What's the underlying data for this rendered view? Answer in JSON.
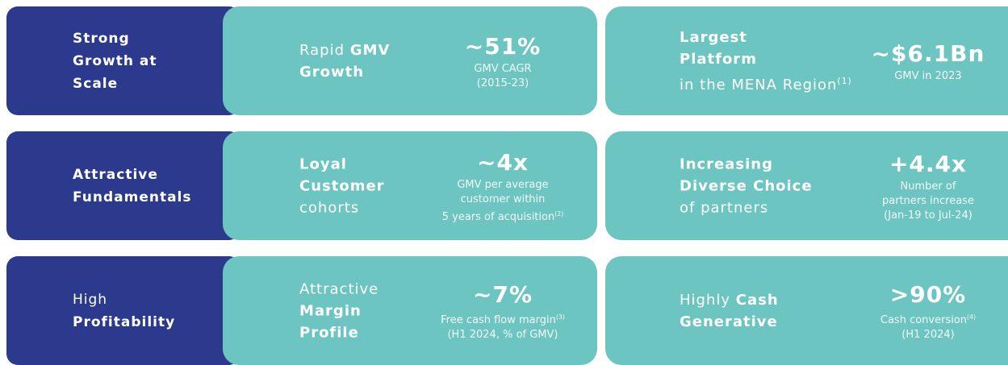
{
  "rows": [
    {
      "label": [
        [
          {
            "text": "Strong",
            "style": "bold"
          }
        ],
        [
          {
            "text": "Growth at",
            "style": "bold"
          }
        ],
        [
          {
            "text": "Scale",
            "style": "bold"
          }
        ]
      ],
      "cards": [
        {
          "label": [
            [
              {
                "text": "Rapid ",
                "style": "normal"
              },
              {
                "text": "GMV",
                "style": "bold"
              }
            ],
            [
              {
                "text": "Growth",
                "style": "bold"
              }
            ]
          ],
          "stat": "~51%",
          "desc": [
            [
              {
                "text": "GMV CAGR",
                "style": "normal"
              }
            ],
            [
              {
                "text": "(2015-23)",
                "style": "normal"
              }
            ]
          ]
        },
        {
          "label": [
            [
              {
                "text": "Largest",
                "style": "bold"
              }
            ],
            [
              {
                "text": "Platform",
                "style": "bold"
              }
            ],
            [
              {
                "text": "in the MENA Region",
                "style": "normal"
              },
              {
                "text": "(1)",
                "style": "sup"
              }
            ]
          ],
          "stat": "~$6.1Bn",
          "desc": [
            [
              {
                "text": "GMV in 2023",
                "style": "normal"
              }
            ]
          ]
        }
      ]
    },
    {
      "label": [
        [
          {
            "text": "Attractive",
            "style": "bold"
          }
        ],
        [
          {
            "text": "Fundamentals",
            "style": "bold"
          }
        ]
      ],
      "cards": [
        {
          "label": [
            [
              {
                "text": "Loyal",
                "style": "bold"
              }
            ],
            [
              {
                "text": "Customer",
                "style": "bold"
              }
            ],
            [
              {
                "text": "cohorts",
                "style": "normal"
              }
            ]
          ],
          "stat": "~4x",
          "desc": [
            [
              {
                "text": "GMV per average",
                "style": "normal"
              }
            ],
            [
              {
                "text": "customer within",
                "style": "normal"
              }
            ],
            [
              {
                "text": "5 years of acquisition",
                "style": "normal"
              },
              {
                "text": "(2)",
                "style": "sup"
              }
            ]
          ]
        },
        {
          "label": [
            [
              {
                "text": "Increasing",
                "style": "bold"
              }
            ],
            [
              {
                "text": "Diverse Choice",
                "style": "bold"
              }
            ],
            [
              {
                "text": "of partners",
                "style": "normal"
              }
            ]
          ],
          "stat": "+4.4x",
          "desc": [
            [
              {
                "text": "Number of",
                "style": "normal"
              }
            ],
            [
              {
                "text": "partners increase",
                "style": "normal"
              }
            ],
            [
              {
                "text": "(Jan-19 to Jul-24)",
                "style": "normal"
              }
            ]
          ]
        }
      ]
    },
    {
      "label": [
        [
          {
            "text": "High",
            "style": "normal"
          }
        ],
        [
          {
            "text": "Profitability",
            "style": "bold"
          }
        ]
      ],
      "cards": [
        {
          "label": [
            [
              {
                "text": "Attractive",
                "style": "normal"
              }
            ],
            [
              {
                "text": "Margin",
                "style": "bold"
              }
            ],
            [
              {
                "text": "Profile",
                "style": "bold"
              }
            ]
          ],
          "stat": "~7%",
          "desc": [
            [
              {
                "text": "Free cash flow margin",
                "style": "normal"
              },
              {
                "text": "(3)",
                "style": "sup"
              }
            ],
            [
              {
                "text": "(H1 2024, % of GMV)",
                "style": "normal"
              }
            ]
          ]
        },
        {
          "label": [
            [
              {
                "text": "Highly ",
                "style": "normal"
              },
              {
                "text": "Cash",
                "style": "bold"
              }
            ],
            [
              {
                "text": "Generative",
                "style": "bold"
              }
            ]
          ],
          "stat": ">90%",
          "desc": [
            [
              {
                "text": "Cash conversion",
                "style": "normal"
              },
              {
                "text": "(4)",
                "style": "sup"
              }
            ],
            [
              {
                "text": "(H1 2024)",
                "style": "normal"
              }
            ]
          ]
        }
      ]
    }
  ]
}
